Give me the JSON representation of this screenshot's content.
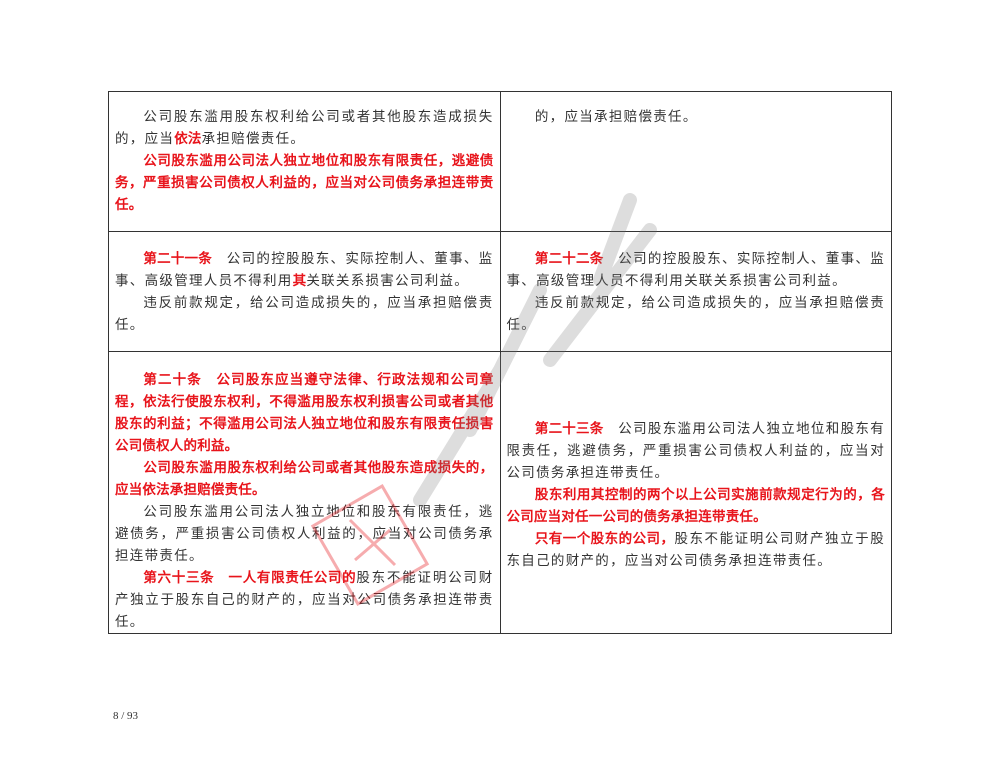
{
  "rows": [
    {
      "left": [
        [
          {
            "t": "公司股东滥用股东权利给公司或者其他股东造成损失的，应当"
          },
          {
            "t": "依法",
            "red": true
          },
          {
            "t": "承担赔偿责任。"
          }
        ],
        [
          {
            "t": "公司股东滥用公司法人独立地位和股东有限责任，逃避债务，严重损害公司债权人利益的，应当对公司债务承担连带责任。",
            "red": true
          }
        ]
      ],
      "right": [
        [
          {
            "t": "的，应当承担赔偿责任。"
          }
        ]
      ]
    },
    {
      "left": [
        [
          {
            "t": "第二十一条",
            "red": true
          },
          {
            "t": "　公司的控股股东、实际控制人、董事、监事、高级管理人员不得利用"
          },
          {
            "t": "其",
            "red": true
          },
          {
            "t": "关联关系损害公司利益。"
          }
        ],
        [
          {
            "t": "违反前款规定，给公司造成损失的，应当承担赔偿责任。"
          }
        ]
      ],
      "right": [
        [
          {
            "t": "第二十二条",
            "red": true
          },
          {
            "t": "　公司的控股股东、实际控制人、董事、监事、高级管理人员不得利用关联关系损害公司利益。"
          }
        ],
        [
          {
            "t": "违反前款规定，给公司造成损失的，应当承担赔偿责任。"
          }
        ]
      ]
    },
    {
      "left": [
        [
          {
            "t": "第二十条　公司股东应当遵守法律、行政法规和公司章程，依法行使股东权利，不得滥用股东权利损害公司或者其他股东的利益；不得滥用公司法人独立地位和股东有限责任损害公司债权人的利益。",
            "red": true
          }
        ],
        [
          {
            "t": "公司股东滥用股东权利给公司或者其他股东造成损失的，应当依法承担赔偿责任。",
            "red": true
          }
        ],
        [
          {
            "t": "公司股东滥用公司法人独立地位和股东有限责任，逃避债务，严重损害公司债权人利益的，应当对公司债务承担连带责任。"
          }
        ],
        [
          {
            "t": "第六十三条　一人有限责任公司的",
            "red": true
          },
          {
            "t": "股东不能证明公司财产独立于股东自己的财产的，应当对公司债务承担连带责任。"
          }
        ]
      ],
      "right": [
        [
          {
            "t": "第二十三条",
            "red": true
          },
          {
            "t": "　公司股东滥用公司法人独立地位和股东有限责任，逃避债务，严重损害公司债权人利益的，应当对公司债务承担连带责任。"
          }
        ],
        [
          {
            "t": "股东利用其控制的两个以上公司实施前款规定行为的，各公司应当对任一公司的债务承担连带责任。",
            "red": true
          }
        ],
        [
          {
            "t": "只有一个股东的公司，",
            "red": true
          },
          {
            "t": "股东不能证明公司财产独立于股东自己的财产的，应当对公司债务承担连带责任。"
          }
        ]
      ]
    }
  ],
  "page_number": "8 / 93",
  "colors": {
    "highlight": "#e8141b",
    "text": "#333333",
    "border": "#333333"
  }
}
